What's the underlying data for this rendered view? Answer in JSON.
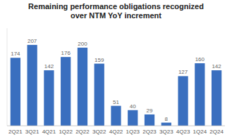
{
  "chart_data": {
    "type": "bar",
    "title": "Remaining performance obligations recognized\nover NTM YoY increment",
    "categories": [
      "2Q21",
      "3Q21",
      "4Q21",
      "1Q22",
      "2Q22",
      "3Q22",
      "4Q22",
      "1Q23",
      "2Q23",
      "3Q23",
      "4Q23",
      "1Q24",
      "2Q24"
    ],
    "values": [
      174,
      207,
      142,
      176,
      200,
      159,
      51,
      40,
      29,
      8,
      127,
      160,
      142
    ],
    "color": "#3A6FBF",
    "ylim": [
      0,
      250
    ],
    "data_labels": true,
    "tick_labels": "x",
    "grid": false
  }
}
